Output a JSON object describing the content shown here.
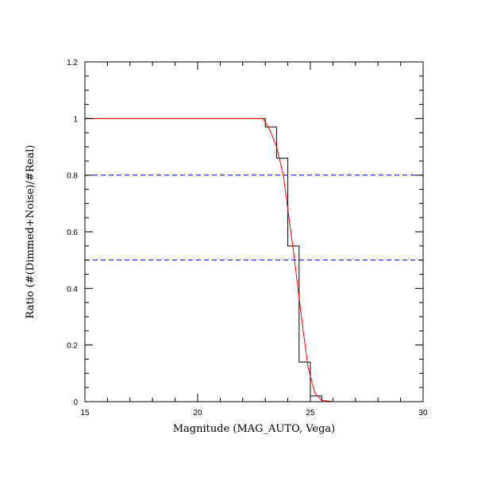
{
  "chart_data": {
    "type": "line",
    "xlabel": "Magnitude (MAG_AUTO, Vega)",
    "ylabel": "Ratio (#(Dimmed+Noise)/#Real)",
    "xlim": [
      15,
      30
    ],
    "ylim": [
      0,
      1.2
    ],
    "xticks": [
      15,
      20,
      25,
      30
    ],
    "xtick_labels": [
      "15",
      "20",
      "25",
      "30"
    ],
    "yticks": [
      0,
      0.2,
      0.4,
      0.6,
      0.8,
      1,
      1.2
    ],
    "ytick_labels": [
      "0",
      "0.2",
      "0.4",
      "0.6",
      "0.8",
      "1",
      "1.2"
    ],
    "grid": false,
    "series": [
      {
        "style": "step-histogram",
        "color": "#000000",
        "bin_edges": [
          15,
          23.0,
          23.5,
          24.0,
          24.5,
          25.0,
          25.5,
          26.0,
          30
        ],
        "values": [
          1.0,
          0.97,
          0.86,
          0.55,
          0.14,
          0.02,
          0.0,
          0.0
        ]
      },
      {
        "style": "line",
        "color": "#ff0000",
        "x": [
          15,
          22.9,
          23.2,
          23.5,
          23.8,
          24.0,
          24.3,
          24.6,
          24.9,
          25.2,
          25.5,
          26.0,
          30
        ],
        "y": [
          1.0,
          1.0,
          0.96,
          0.9,
          0.8,
          0.68,
          0.5,
          0.3,
          0.12,
          0.03,
          0.005,
          0.0,
          0.0
        ]
      },
      {
        "style": "dashed-hline",
        "color": "#0000ff",
        "y": 0.8
      },
      {
        "style": "dashed-hline",
        "color": "#0000ff",
        "y": 0.5
      }
    ]
  }
}
